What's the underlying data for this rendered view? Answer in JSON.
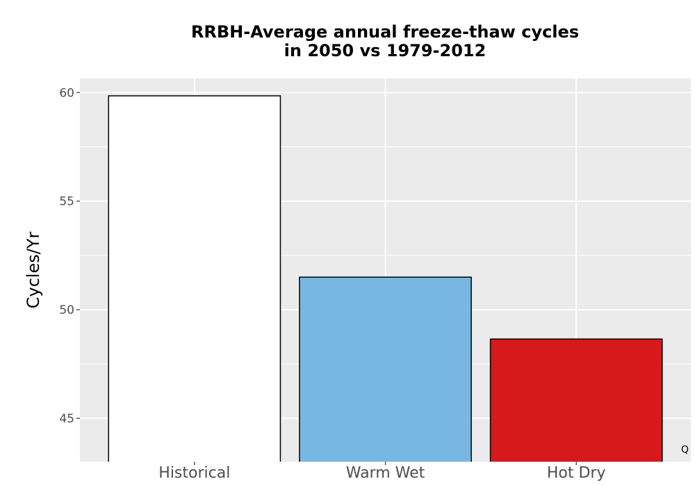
{
  "chart_data": {
    "type": "bar",
    "title_line1": "RRBH-Average annual freeze-thaw cycles",
    "title_line2": "in 2050 vs 1979-2012",
    "xlabel": "",
    "ylabel": "Cycles/Yr",
    "categories": [
      "Historical",
      "Warm Wet",
      "Hot Dry"
    ],
    "values": [
      59.85,
      51.5,
      48.65
    ],
    "colors": [
      "#ffffff",
      "#78b7e1",
      "#d7191c"
    ],
    "ylim": [
      43.0,
      60.65
    ],
    "yticks": [
      45,
      50,
      55,
      60
    ],
    "grid": true,
    "panel_background": "#ebebeb"
  },
  "corner_mark": "Q"
}
